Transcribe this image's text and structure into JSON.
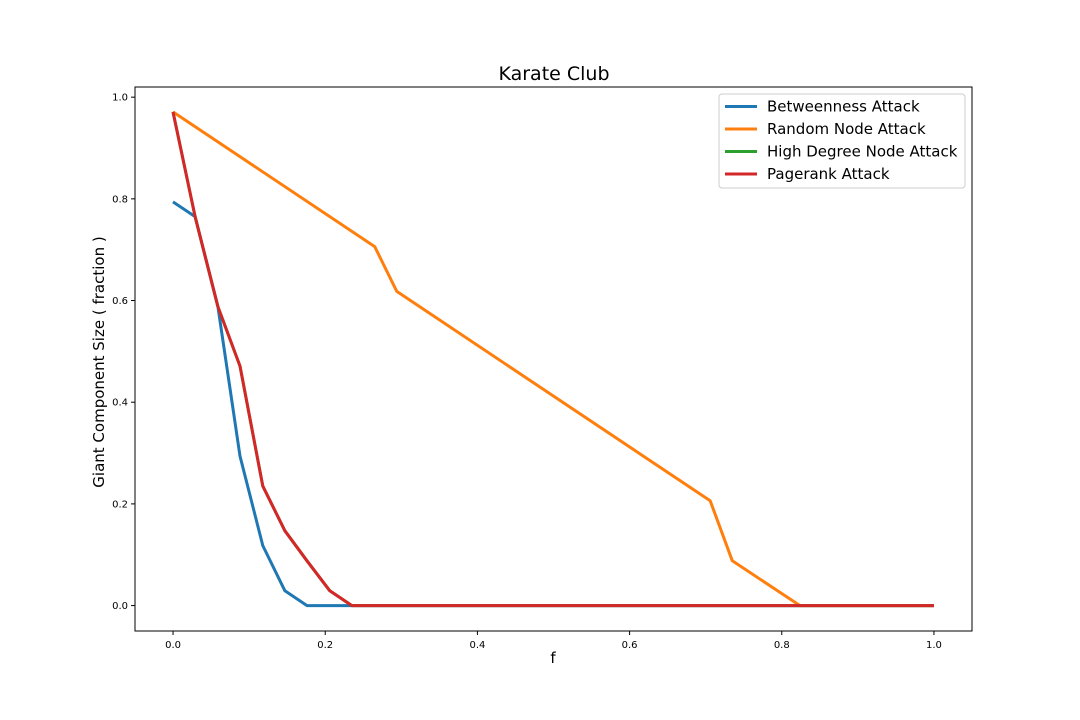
{
  "chart_data": {
    "type": "line",
    "title": "Karate Club",
    "xlabel": "f",
    "ylabel": "Giant Component Size ( fraction )",
    "xlim": [
      -0.05,
      1.05
    ],
    "ylim": [
      -0.05,
      1.02
    ],
    "xticks": [
      0.0,
      0.2,
      0.4,
      0.6,
      0.8,
      1.0
    ],
    "xtick_labels": [
      "0.0",
      "0.2",
      "0.4",
      "0.6",
      "0.8",
      "1.0"
    ],
    "yticks": [
      0.0,
      0.2,
      0.4,
      0.6,
      0.8,
      1.0
    ],
    "ytick_labels": [
      "0.0",
      "0.2",
      "0.4",
      "0.6",
      "0.8",
      "1.0"
    ],
    "grid": false,
    "legend_position": "top-right",
    "series": [
      {
        "name": "Betweenness Attack",
        "color": "#1f77b4",
        "x": [
          0.0,
          0.029,
          0.059,
          0.088,
          0.118,
          0.147,
          0.176,
          0.206,
          0.235,
          1.0
        ],
        "y": [
          0.794,
          0.765,
          0.588,
          0.294,
          0.118,
          0.029,
          0.0,
          0.0,
          0.0,
          0.0
        ]
      },
      {
        "name": "Random Node Attack",
        "color": "#ff7f0e",
        "x": [
          0.0,
          0.265,
          0.294,
          0.706,
          0.735,
          0.824,
          1.0
        ],
        "y": [
          0.971,
          0.706,
          0.618,
          0.206,
          0.088,
          0.0,
          0.0
        ]
      },
      {
        "name": "High Degree Node Attack",
        "color": "#2ca02c",
        "x": [
          0.0,
          0.029,
          0.059,
          0.088,
          0.118,
          0.147,
          0.176,
          0.206,
          0.235,
          1.0
        ],
        "y": [
          0.971,
          0.765,
          0.588,
          0.471,
          0.235,
          0.147,
          0.088,
          0.029,
          0.0,
          0.0
        ]
      },
      {
        "name": "Pagerank Attack",
        "color": "#d62728",
        "x": [
          0.0,
          0.029,
          0.059,
          0.088,
          0.118,
          0.147,
          0.176,
          0.206,
          0.235,
          1.0
        ],
        "y": [
          0.971,
          0.765,
          0.588,
          0.471,
          0.235,
          0.147,
          0.088,
          0.029,
          0.0,
          0.0
        ]
      }
    ]
  }
}
